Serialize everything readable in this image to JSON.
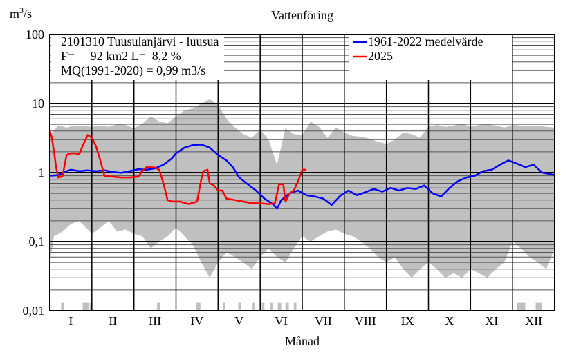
{
  "chart_data": {
    "type": "area",
    "title": "Vattenföring",
    "ylabel": "m3/s",
    "ylabel_base": "m",
    "ylabel_exp": "3",
    "ylabel_tail": "/s",
    "xlabel": "Månad",
    "yscale": "log",
    "ylim": [
      0.01,
      100
    ],
    "y_ticks": [
      100,
      10,
      1,
      0.1,
      0.01
    ],
    "y_tick_labels": [
      "100",
      "10",
      "1",
      "0,1",
      "0,01"
    ],
    "months": [
      "I",
      "II",
      "III",
      "IV",
      "V",
      "VI",
      "VII",
      "VIII",
      "IX",
      "X",
      "XI",
      "XII"
    ],
    "grid": true,
    "legend_position": "top-right",
    "info": {
      "station": "2101310 Tuusulanjärvi - luusua",
      "area_line": "F=     92 km2 L=  8,2 %",
      "mq_line": "MQ(1991-2020) = 0,99 m3/s"
    },
    "range_band": {
      "color": "#c0c0c0",
      "upper": [
        [
          0,
          3.5
        ],
        [
          0.2,
          4.8
        ],
        [
          0.4,
          4.5
        ],
        [
          0.6,
          4.8
        ],
        [
          0.8,
          4.7
        ],
        [
          1.0,
          4.6
        ],
        [
          1.2,
          4.8
        ],
        [
          1.4,
          4.6
        ],
        [
          1.6,
          5.0
        ],
        [
          1.8,
          4.9
        ],
        [
          2.0,
          4.4
        ],
        [
          2.2,
          5.1
        ],
        [
          2.4,
          6.5
        ],
        [
          2.6,
          5.5
        ],
        [
          2.8,
          5.2
        ],
        [
          3.0,
          6.5
        ],
        [
          3.2,
          8.0
        ],
        [
          3.4,
          8.5
        ],
        [
          3.6,
          10.0
        ],
        [
          3.8,
          11.5
        ],
        [
          4.0,
          9.5
        ],
        [
          4.2,
          6.0
        ],
        [
          4.4,
          4.5
        ],
        [
          4.6,
          3.6
        ],
        [
          4.8,
          3.2
        ],
        [
          5.0,
          4.2
        ],
        [
          5.2,
          3.0
        ],
        [
          5.4,
          1.3
        ],
        [
          5.6,
          4.4
        ],
        [
          5.8,
          3.6
        ],
        [
          6.0,
          3.5
        ],
        [
          6.2,
          5.5
        ],
        [
          6.4,
          4.6
        ],
        [
          6.6,
          3.2
        ],
        [
          6.8,
          4.5
        ],
        [
          7.0,
          3.8
        ],
        [
          7.2,
          3.4
        ],
        [
          7.4,
          3.3
        ],
        [
          7.6,
          3.1
        ],
        [
          7.8,
          2.8
        ],
        [
          8.0,
          2.6
        ],
        [
          8.2,
          3.0
        ],
        [
          8.4,
          3.8
        ],
        [
          8.6,
          3.6
        ],
        [
          8.8,
          3.2
        ],
        [
          9.0,
          4.6
        ],
        [
          9.2,
          4.9
        ],
        [
          9.4,
          4.6
        ],
        [
          9.6,
          4.8
        ],
        [
          9.8,
          5.1
        ],
        [
          10.0,
          4.6
        ],
        [
          10.2,
          4.9
        ],
        [
          10.4,
          5.0
        ],
        [
          10.6,
          4.8
        ],
        [
          10.8,
          4.5
        ],
        [
          11.0,
          4.9
        ],
        [
          11.2,
          4.8
        ],
        [
          11.4,
          4.7
        ],
        [
          11.6,
          4.8
        ],
        [
          11.8,
          4.6
        ],
        [
          12.0,
          4.5
        ]
      ],
      "lower": [
        [
          0,
          0.05
        ],
        [
          0.1,
          0.12
        ],
        [
          0.3,
          0.14
        ],
        [
          0.5,
          0.18
        ],
        [
          0.7,
          0.2
        ],
        [
          0.9,
          0.15
        ],
        [
          1.0,
          0.13
        ],
        [
          1.2,
          0.16
        ],
        [
          1.4,
          0.2
        ],
        [
          1.6,
          0.14
        ],
        [
          1.8,
          0.15
        ],
        [
          2.0,
          0.13
        ],
        [
          2.2,
          0.12
        ],
        [
          2.4,
          0.08
        ],
        [
          2.6,
          0.1
        ],
        [
          2.8,
          0.12
        ],
        [
          3.0,
          0.16
        ],
        [
          3.2,
          0.12
        ],
        [
          3.4,
          0.09
        ],
        [
          3.6,
          0.05
        ],
        [
          3.8,
          0.03
        ],
        [
          4.0,
          0.05
        ],
        [
          4.2,
          0.07
        ],
        [
          4.4,
          0.06
        ],
        [
          4.6,
          0.05
        ],
        [
          4.8,
          0.04
        ],
        [
          5.0,
          0.06
        ],
        [
          5.2,
          0.08
        ],
        [
          5.4,
          0.06
        ],
        [
          5.6,
          0.05
        ],
        [
          5.8,
          0.08
        ],
        [
          6.0,
          0.12
        ],
        [
          6.2,
          0.1
        ],
        [
          6.4,
          0.12
        ],
        [
          6.6,
          0.14
        ],
        [
          6.8,
          0.15
        ],
        [
          7.0,
          0.13
        ],
        [
          7.2,
          0.12
        ],
        [
          7.4,
          0.1
        ],
        [
          7.6,
          0.08
        ],
        [
          7.8,
          0.06
        ],
        [
          8.0,
          0.05
        ],
        [
          8.2,
          0.06
        ],
        [
          8.4,
          0.04
        ],
        [
          8.6,
          0.03
        ],
        [
          8.8,
          0.04
        ],
        [
          9.0,
          0.05
        ],
        [
          9.2,
          0.04
        ],
        [
          9.4,
          0.03
        ],
        [
          9.6,
          0.035
        ],
        [
          9.8,
          0.03
        ],
        [
          10.0,
          0.04
        ],
        [
          10.2,
          0.035
        ],
        [
          10.4,
          0.03
        ],
        [
          10.6,
          0.04
        ],
        [
          10.8,
          0.05
        ],
        [
          11.0,
          0.1
        ],
        [
          11.2,
          0.08
        ],
        [
          11.4,
          0.06
        ],
        [
          11.6,
          0.05
        ],
        [
          11.8,
          0.04
        ],
        [
          12.0,
          0.08
        ]
      ],
      "dropouts": [
        [
          0.27,
          0.33
        ],
        [
          0.78,
          0.92
        ],
        [
          0.95,
          0.99
        ],
        [
          2.55,
          2.62
        ],
        [
          3.48,
          3.58
        ],
        [
          4.12,
          4.17
        ],
        [
          4.48,
          4.54
        ],
        [
          4.82,
          4.88
        ],
        [
          5.04,
          5.1
        ],
        [
          5.24,
          5.3
        ],
        [
          5.42,
          5.5
        ],
        [
          5.6,
          5.68
        ],
        [
          5.8,
          5.86
        ],
        [
          11.1,
          11.3
        ],
        [
          11.55,
          11.7
        ]
      ]
    },
    "series": [
      {
        "name": "1961-2022 medelvärde",
        "color": "#0000ff",
        "points": [
          [
            0,
            0.9
          ],
          [
            0.2,
            0.92
          ],
          [
            0.4,
            1.05
          ],
          [
            0.5,
            1.1
          ],
          [
            0.7,
            1.05
          ],
          [
            0.9,
            1.08
          ],
          [
            1.1,
            1.05
          ],
          [
            1.3,
            1.08
          ],
          [
            1.5,
            1.02
          ],
          [
            1.7,
            0.99
          ],
          [
            1.9,
            1.05
          ],
          [
            2.1,
            1.12
          ],
          [
            2.3,
            1.1
          ],
          [
            2.5,
            1.15
          ],
          [
            2.7,
            1.3
          ],
          [
            2.9,
            1.6
          ],
          [
            3.0,
            1.9
          ],
          [
            3.2,
            2.3
          ],
          [
            3.4,
            2.5
          ],
          [
            3.6,
            2.55
          ],
          [
            3.8,
            2.3
          ],
          [
            4.0,
            1.8
          ],
          [
            4.2,
            1.5
          ],
          [
            4.35,
            1.2
          ],
          [
            4.5,
            0.85
          ],
          [
            4.7,
            0.68
          ],
          [
            4.9,
            0.55
          ],
          [
            5.1,
            0.42
          ],
          [
            5.3,
            0.35
          ],
          [
            5.4,
            0.3
          ],
          [
            5.5,
            0.4
          ],
          [
            5.7,
            0.5
          ],
          [
            5.9,
            0.55
          ],
          [
            6.1,
            0.47
          ],
          [
            6.3,
            0.45
          ],
          [
            6.5,
            0.42
          ],
          [
            6.7,
            0.34
          ],
          [
            6.9,
            0.46
          ],
          [
            7.1,
            0.55
          ],
          [
            7.3,
            0.47
          ],
          [
            7.5,
            0.52
          ],
          [
            7.7,
            0.58
          ],
          [
            7.9,
            0.53
          ],
          [
            8.1,
            0.6
          ],
          [
            8.3,
            0.55
          ],
          [
            8.5,
            0.6
          ],
          [
            8.7,
            0.58
          ],
          [
            8.9,
            0.65
          ],
          [
            9.1,
            0.5
          ],
          [
            9.3,
            0.45
          ],
          [
            9.5,
            0.6
          ],
          [
            9.7,
            0.75
          ],
          [
            9.9,
            0.85
          ],
          [
            10.1,
            0.9
          ],
          [
            10.3,
            1.05
          ],
          [
            10.5,
            1.1
          ],
          [
            10.7,
            1.3
          ],
          [
            10.9,
            1.5
          ],
          [
            11.1,
            1.35
          ],
          [
            11.3,
            1.2
          ],
          [
            11.5,
            1.3
          ],
          [
            11.7,
            1.0
          ],
          [
            11.9,
            0.95
          ],
          [
            12.0,
            0.92
          ]
        ]
      },
      {
        "name": "2025",
        "color": "#ff0000",
        "points": [
          [
            0,
            4.0
          ],
          [
            0.05,
            3.2
          ],
          [
            0.1,
            2.0
          ],
          [
            0.15,
            1.2
          ],
          [
            0.2,
            0.85
          ],
          [
            0.3,
            0.88
          ],
          [
            0.4,
            1.8
          ],
          [
            0.5,
            1.9
          ],
          [
            0.6,
            1.9
          ],
          [
            0.7,
            1.85
          ],
          [
            0.8,
            2.6
          ],
          [
            0.9,
            3.5
          ],
          [
            1.0,
            3.2
          ],
          [
            1.1,
            2.4
          ],
          [
            1.2,
            1.5
          ],
          [
            1.3,
            0.9
          ],
          [
            1.5,
            0.87
          ],
          [
            1.7,
            0.85
          ],
          [
            1.9,
            0.85
          ],
          [
            2.1,
            0.87
          ],
          [
            2.2,
            1.05
          ],
          [
            2.3,
            1.2
          ],
          [
            2.5,
            1.18
          ],
          [
            2.6,
            1.1
          ],
          [
            2.7,
            0.7
          ],
          [
            2.8,
            0.4
          ],
          [
            2.9,
            0.38
          ],
          [
            3.1,
            0.38
          ],
          [
            3.3,
            0.35
          ],
          [
            3.5,
            0.38
          ],
          [
            3.6,
            0.8
          ],
          [
            3.65,
            1.05
          ],
          [
            3.75,
            1.1
          ],
          [
            3.8,
            0.7
          ],
          [
            3.9,
            0.65
          ],
          [
            4.0,
            0.55
          ],
          [
            4.1,
            0.55
          ],
          [
            4.2,
            0.42
          ],
          [
            4.4,
            0.4
          ],
          [
            4.6,
            0.38
          ],
          [
            4.8,
            0.36
          ],
          [
            5.0,
            0.36
          ],
          [
            5.2,
            0.35
          ],
          [
            5.35,
            0.36
          ],
          [
            5.45,
            0.68
          ],
          [
            5.55,
            0.68
          ],
          [
            5.6,
            0.38
          ],
          [
            5.7,
            0.5
          ],
          [
            5.8,
            0.55
          ],
          [
            5.9,
            0.75
          ],
          [
            6.0,
            1.1
          ],
          [
            6.1,
            1.1
          ]
        ]
      }
    ]
  }
}
